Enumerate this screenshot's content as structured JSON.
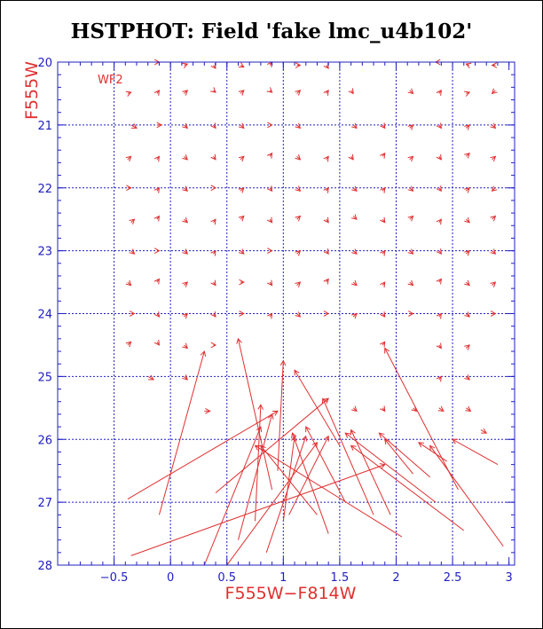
{
  "title": "HSTPHOT: Field 'fake lmc_u4b102'",
  "colors": {
    "axis": "#2020c0",
    "grid": "#2020c0",
    "vectors": "#e03030",
    "text": "#e03030"
  },
  "chart_data": {
    "type": "scatter",
    "subtype": "vector-field",
    "xlabel": "F555W−F814W",
    "ylabel": "F555W",
    "panel_label": "WF2",
    "xlim": [
      -1.0,
      3.05
    ],
    "ylim": [
      28.0,
      20.0
    ],
    "y_inverted": true,
    "xticks": [
      -0.5,
      0,
      0.5,
      1,
      1.5,
      2,
      2.5,
      3
    ],
    "xtick_labels": [
      "−0.5",
      "0",
      "0.5",
      "1",
      "1.5",
      "2",
      "2.5",
      "3"
    ],
    "yticks": [
      20,
      21,
      22,
      23,
      24,
      25,
      26,
      27,
      28
    ],
    "ytick_labels": [
      "20",
      "21",
      "22",
      "23",
      "24",
      "25",
      "26",
      "27",
      "28"
    ],
    "grid": true,
    "grid_x": [
      -0.5,
      0,
      0.5,
      1,
      1.5,
      2,
      2.5
    ],
    "grid_y": [
      21,
      22,
      23,
      24,
      25,
      26,
      27
    ],
    "vectors": [
      {
        "x0": -0.15,
        "y0": 20.0,
        "x1": -0.1,
        "y1": 20.0
      },
      {
        "x0": 0.12,
        "y0": 20.05,
        "x1": 0.15,
        "y1": 20.03
      },
      {
        "x0": 0.38,
        "y0": 20.05,
        "x1": 0.4,
        "y1": 20.1
      },
      {
        "x0": 0.62,
        "y0": 20.05,
        "x1": 0.65,
        "y1": 20.08
      },
      {
        "x0": 0.88,
        "y0": 20.05,
        "x1": 0.9,
        "y1": 20.0
      },
      {
        "x0": 1.12,
        "y0": 20.05,
        "x1": 1.15,
        "y1": 20.05
      },
      {
        "x0": 1.38,
        "y0": 20.05,
        "x1": 1.4,
        "y1": 20.1
      },
      {
        "x0": 2.38,
        "y0": 20.0,
        "x1": 2.35,
        "y1": 20.0
      },
      {
        "x0": 2.65,
        "y0": 20.05,
        "x1": 2.62,
        "y1": 20.03
      },
      {
        "x0": 2.88,
        "y0": 20.05,
        "x1": 2.85,
        "y1": 20.05
      },
      {
        "x0": -0.38,
        "y0": 20.5,
        "x1": -0.35,
        "y1": 20.48
      },
      {
        "x0": -0.12,
        "y0": 20.5,
        "x1": -0.1,
        "y1": 20.45
      },
      {
        "x0": 0.12,
        "y0": 20.5,
        "x1": 0.15,
        "y1": 20.45
      },
      {
        "x0": 0.38,
        "y0": 20.45,
        "x1": 0.4,
        "y1": 20.48
      },
      {
        "x0": 0.62,
        "y0": 20.5,
        "x1": 0.65,
        "y1": 20.45
      },
      {
        "x0": 0.88,
        "y0": 20.45,
        "x1": 0.9,
        "y1": 20.48
      },
      {
        "x0": 1.12,
        "y0": 20.5,
        "x1": 1.15,
        "y1": 20.45
      },
      {
        "x0": 1.38,
        "y0": 20.5,
        "x1": 1.4,
        "y1": 20.45
      },
      {
        "x0": 1.6,
        "y0": 20.45,
        "x1": 1.62,
        "y1": 20.5
      },
      {
        "x0": 2.12,
        "y0": 20.45,
        "x1": 2.15,
        "y1": 20.5
      },
      {
        "x0": 2.38,
        "y0": 20.5,
        "x1": 2.4,
        "y1": 20.45
      },
      {
        "x0": 2.62,
        "y0": 20.5,
        "x1": 2.65,
        "y1": 20.48
      },
      {
        "x0": 2.88,
        "y0": 20.45,
        "x1": 2.85,
        "y1": 20.5
      },
      {
        "x0": -0.35,
        "y0": 21.0,
        "x1": -0.3,
        "y1": 21.05
      },
      {
        "x0": -0.12,
        "y0": 21.0,
        "x1": -0.08,
        "y1": 21.0
      },
      {
        "x0": 0.12,
        "y0": 21.0,
        "x1": 0.15,
        "y1": 21.05
      },
      {
        "x0": 0.38,
        "y0": 21.0,
        "x1": 0.4,
        "y1": 21.05
      },
      {
        "x0": 0.62,
        "y0": 21.0,
        "x1": 0.65,
        "y1": 21.05
      },
      {
        "x0": 0.88,
        "y0": 21.0,
        "x1": 0.9,
        "y1": 21.0
      },
      {
        "x0": 1.12,
        "y0": 21.0,
        "x1": 1.15,
        "y1": 21.05
      },
      {
        "x0": 1.62,
        "y0": 21.0,
        "x1": 1.65,
        "y1": 21.05
      },
      {
        "x0": 1.88,
        "y0": 21.0,
        "x1": 1.9,
        "y1": 21.05
      },
      {
        "x0": 2.12,
        "y0": 21.05,
        "x1": 2.15,
        "y1": 21.0
      },
      {
        "x0": 2.38,
        "y0": 21.0,
        "x1": 2.4,
        "y1": 21.05
      },
      {
        "x0": 2.62,
        "y0": 21.05,
        "x1": 2.65,
        "y1": 21.0
      },
      {
        "x0": 2.85,
        "y0": 21.0,
        "x1": 2.88,
        "y1": 21.05
      },
      {
        "x0": -0.38,
        "y0": 21.55,
        "x1": -0.35,
        "y1": 21.5
      },
      {
        "x0": -0.12,
        "y0": 21.55,
        "x1": -0.1,
        "y1": 21.5
      },
      {
        "x0": 0.12,
        "y0": 21.5,
        "x1": 0.15,
        "y1": 21.55
      },
      {
        "x0": 0.38,
        "y0": 21.5,
        "x1": 0.4,
        "y1": 21.55
      },
      {
        "x0": 0.62,
        "y0": 21.55,
        "x1": 0.65,
        "y1": 21.5
      },
      {
        "x0": 0.88,
        "y0": 21.5,
        "x1": 0.9,
        "y1": 21.45
      },
      {
        "x0": 1.12,
        "y0": 21.5,
        "x1": 1.15,
        "y1": 21.55
      },
      {
        "x0": 1.38,
        "y0": 21.55,
        "x1": 1.4,
        "y1": 21.5
      },
      {
        "x0": 1.6,
        "y0": 21.5,
        "x1": 1.62,
        "y1": 21.55
      },
      {
        "x0": 1.88,
        "y0": 21.5,
        "x1": 1.9,
        "y1": 21.45
      },
      {
        "x0": 2.12,
        "y0": 21.55,
        "x1": 2.15,
        "y1": 21.5
      },
      {
        "x0": 2.38,
        "y0": 21.5,
        "x1": 2.4,
        "y1": 21.55
      },
      {
        "x0": 2.62,
        "y0": 21.5,
        "x1": 2.65,
        "y1": 21.45
      },
      {
        "x0": 2.85,
        "y0": 21.55,
        "x1": 2.88,
        "y1": 21.5
      },
      {
        "x0": -0.38,
        "y0": 22.0,
        "x1": -0.35,
        "y1": 22.0
      },
      {
        "x0": -0.12,
        "y0": 22.05,
        "x1": -0.1,
        "y1": 22.0
      },
      {
        "x0": 0.12,
        "y0": 22.0,
        "x1": 0.15,
        "y1": 22.05
      },
      {
        "x0": 0.38,
        "y0": 22.0,
        "x1": 0.4,
        "y1": 22.0
      },
      {
        "x0": 0.62,
        "y0": 22.05,
        "x1": 0.65,
        "y1": 22.0
      },
      {
        "x0": 0.88,
        "y0": 22.0,
        "x1": 0.9,
        "y1": 22.05
      },
      {
        "x0": 1.12,
        "y0": 22.0,
        "x1": 1.15,
        "y1": 22.05
      },
      {
        "x0": 1.38,
        "y0": 22.05,
        "x1": 1.4,
        "y1": 22.0
      },
      {
        "x0": 1.62,
        "y0": 22.0,
        "x1": 1.65,
        "y1": 22.05
      },
      {
        "x0": 1.88,
        "y0": 22.05,
        "x1": 1.9,
        "y1": 22.0
      },
      {
        "x0": 2.12,
        "y0": 22.0,
        "x1": 2.15,
        "y1": 22.05
      },
      {
        "x0": 2.38,
        "y0": 22.0,
        "x1": 2.4,
        "y1": 22.05
      },
      {
        "x0": 2.62,
        "y0": 22.05,
        "x1": 2.65,
        "y1": 22.0
      },
      {
        "x0": 2.88,
        "y0": 22.0,
        "x1": 2.85,
        "y1": 22.05
      },
      {
        "x0": -0.35,
        "y0": 22.55,
        "x1": -0.32,
        "y1": 22.5
      },
      {
        "x0": -0.12,
        "y0": 22.5,
        "x1": -0.1,
        "y1": 22.45
      },
      {
        "x0": 0.12,
        "y0": 22.5,
        "x1": 0.15,
        "y1": 22.55
      },
      {
        "x0": 0.38,
        "y0": 22.55,
        "x1": 0.4,
        "y1": 22.5
      },
      {
        "x0": 0.62,
        "y0": 22.5,
        "x1": 0.65,
        "y1": 22.45
      },
      {
        "x0": 0.88,
        "y0": 22.5,
        "x1": 0.9,
        "y1": 22.55
      },
      {
        "x0": 1.12,
        "y0": 22.5,
        "x1": 1.15,
        "y1": 22.45
      },
      {
        "x0": 1.38,
        "y0": 22.5,
        "x1": 1.4,
        "y1": 22.55
      },
      {
        "x0": 1.62,
        "y0": 22.45,
        "x1": 1.65,
        "y1": 22.5
      },
      {
        "x0": 1.88,
        "y0": 22.5,
        "x1": 1.9,
        "y1": 22.55
      },
      {
        "x0": 2.12,
        "y0": 22.5,
        "x1": 2.15,
        "y1": 22.45
      },
      {
        "x0": 2.38,
        "y0": 22.55,
        "x1": 2.4,
        "y1": 22.5
      },
      {
        "x0": 2.62,
        "y0": 22.5,
        "x1": 2.65,
        "y1": 22.55
      },
      {
        "x0": 2.85,
        "y0": 22.5,
        "x1": 2.88,
        "y1": 22.45
      },
      {
        "x0": -0.35,
        "y0": 23.0,
        "x1": -0.32,
        "y1": 23.05
      },
      {
        "x0": -0.12,
        "y0": 23.0,
        "x1": -0.1,
        "y1": 23.0
      },
      {
        "x0": 0.12,
        "y0": 23.0,
        "x1": 0.15,
        "y1": 23.05
      },
      {
        "x0": 0.38,
        "y0": 23.05,
        "x1": 0.4,
        "y1": 23.0
      },
      {
        "x0": 0.62,
        "y0": 23.0,
        "x1": 0.65,
        "y1": 23.05
      },
      {
        "x0": 0.88,
        "y0": 23.0,
        "x1": 0.9,
        "y1": 23.0
      },
      {
        "x0": 1.12,
        "y0": 23.05,
        "x1": 1.15,
        "y1": 23.0
      },
      {
        "x0": 1.38,
        "y0": 23.0,
        "x1": 1.4,
        "y1": 23.05
      },
      {
        "x0": 1.62,
        "y0": 23.0,
        "x1": 1.65,
        "y1": 23.05
      },
      {
        "x0": 1.88,
        "y0": 23.05,
        "x1": 1.9,
        "y1": 23.0
      },
      {
        "x0": 2.12,
        "y0": 23.0,
        "x1": 2.15,
        "y1": 23.05
      },
      {
        "x0": 2.38,
        "y0": 23.0,
        "x1": 2.4,
        "y1": 23.05
      },
      {
        "x0": 2.62,
        "y0": 23.05,
        "x1": 2.65,
        "y1": 23.0
      },
      {
        "x0": 2.85,
        "y0": 23.0,
        "x1": 2.88,
        "y1": 23.05
      },
      {
        "x0": -0.38,
        "y0": 23.5,
        "x1": -0.35,
        "y1": 23.55
      },
      {
        "x0": -0.12,
        "y0": 23.5,
        "x1": -0.1,
        "y1": 23.45
      },
      {
        "x0": 0.12,
        "y0": 23.55,
        "x1": 0.15,
        "y1": 23.5
      },
      {
        "x0": 0.38,
        "y0": 23.5,
        "x1": 0.4,
        "y1": 23.55
      },
      {
        "x0": 0.62,
        "y0": 23.5,
        "x1": 0.65,
        "y1": 23.5
      },
      {
        "x0": 0.88,
        "y0": 23.5,
        "x1": 0.9,
        "y1": 23.55
      },
      {
        "x0": 1.12,
        "y0": 23.55,
        "x1": 1.15,
        "y1": 23.5
      },
      {
        "x0": 1.38,
        "y0": 23.5,
        "x1": 1.4,
        "y1": 23.45
      },
      {
        "x0": 1.62,
        "y0": 23.5,
        "x1": 1.65,
        "y1": 23.55
      },
      {
        "x0": 1.88,
        "y0": 23.55,
        "x1": 1.9,
        "y1": 23.5
      },
      {
        "x0": 2.12,
        "y0": 23.5,
        "x1": 2.15,
        "y1": 23.55
      },
      {
        "x0": 2.38,
        "y0": 23.5,
        "x1": 2.4,
        "y1": 23.45
      },
      {
        "x0": 2.62,
        "y0": 23.5,
        "x1": 2.65,
        "y1": 23.55
      },
      {
        "x0": 2.85,
        "y0": 23.55,
        "x1": 2.88,
        "y1": 23.5
      },
      {
        "x0": -0.35,
        "y0": 24.0,
        "x1": -0.32,
        "y1": 24.0
      },
      {
        "x0": -0.12,
        "y0": 24.0,
        "x1": -0.1,
        "y1": 24.05
      },
      {
        "x0": 0.12,
        "y0": 24.05,
        "x1": 0.15,
        "y1": 24.0
      },
      {
        "x0": 0.38,
        "y0": 24.0,
        "x1": 0.4,
        "y1": 24.05
      },
      {
        "x0": 0.62,
        "y0": 24.0,
        "x1": 0.65,
        "y1": 24.0
      },
      {
        "x0": 0.88,
        "y0": 24.05,
        "x1": 0.9,
        "y1": 24.0
      },
      {
        "x0": 1.12,
        "y0": 24.0,
        "x1": 1.15,
        "y1": 24.05
      },
      {
        "x0": 1.38,
        "y0": 24.0,
        "x1": 1.4,
        "y1": 24.0
      },
      {
        "x0": 1.62,
        "y0": 24.05,
        "x1": 1.65,
        "y1": 24.0
      },
      {
        "x0": 1.88,
        "y0": 24.0,
        "x1": 1.9,
        "y1": 24.05
      },
      {
        "x0": 2.12,
        "y0": 24.0,
        "x1": 2.15,
        "y1": 24.0
      },
      {
        "x0": 2.38,
        "y0": 24.05,
        "x1": 2.4,
        "y1": 24.0
      },
      {
        "x0": 2.62,
        "y0": 24.0,
        "x1": 2.65,
        "y1": 24.05
      },
      {
        "x0": 2.85,
        "y0": 24.0,
        "x1": 2.88,
        "y1": 24.0
      },
      {
        "x0": -0.38,
        "y0": 24.5,
        "x1": -0.35,
        "y1": 24.45
      },
      {
        "x0": -0.12,
        "y0": 24.45,
        "x1": -0.1,
        "y1": 24.5
      },
      {
        "x0": 0.12,
        "y0": 24.5,
        "x1": 0.15,
        "y1": 24.55
      },
      {
        "x0": 0.38,
        "y0": 24.5,
        "x1": 0.4,
        "y1": 24.5
      },
      {
        "x0": 1.88,
        "y0": 24.5,
        "x1": 1.9,
        "y1": 24.45
      },
      {
        "x0": 2.38,
        "y0": 24.5,
        "x1": 2.4,
        "y1": 24.55
      },
      {
        "x0": 2.62,
        "y0": 24.55,
        "x1": 2.65,
        "y1": 24.5
      },
      {
        "x0": -0.2,
        "y0": 25.0,
        "x1": -0.15,
        "y1": 25.05
      },
      {
        "x0": 0.12,
        "y0": 25.0,
        "x1": 0.15,
        "y1": 25.05
      },
      {
        "x0": 2.38,
        "y0": 25.05,
        "x1": 2.4,
        "y1": 25.0
      },
      {
        "x0": 2.62,
        "y0": 25.0,
        "x1": 2.65,
        "y1": 25.05
      },
      {
        "x0": 0.3,
        "y0": 25.55,
        "x1": 0.35,
        "y1": 25.55
      },
      {
        "x0": 1.62,
        "y0": 25.5,
        "x1": 1.65,
        "y1": 25.55
      },
      {
        "x0": 1.88,
        "y0": 25.5,
        "x1": 1.9,
        "y1": 25.55
      },
      {
        "x0": 2.15,
        "y0": 25.5,
        "x1": 2.18,
        "y1": 25.55
      },
      {
        "x0": 2.38,
        "y0": 25.5,
        "x1": 2.42,
        "y1": 25.55
      },
      {
        "x0": 2.62,
        "y0": 25.5,
        "x1": 2.66,
        "y1": 25.55
      },
      {
        "x0": 2.75,
        "y0": 25.85,
        "x1": 2.8,
        "y1": 25.9
      },
      {
        "x0": -0.1,
        "y0": 27.2,
        "x1": 0.3,
        "y1": 24.6
      },
      {
        "x0": -0.38,
        "y0": 26.95,
        "x1": 0.95,
        "y1": 25.55
      },
      {
        "x0": -0.35,
        "y0": 27.85,
        "x1": 1.9,
        "y1": 26.4
      },
      {
        "x0": 0.3,
        "y0": 28.0,
        "x1": 0.8,
        "y1": 25.8
      },
      {
        "x0": 0.4,
        "y0": 26.85,
        "x1": 1.4,
        "y1": 25.35
      },
      {
        "x0": 0.5,
        "y0": 28.0,
        "x1": 1.3,
        "y1": 26.05
      },
      {
        "x0": 0.6,
        "y0": 27.6,
        "x1": 0.9,
        "y1": 25.6
      },
      {
        "x0": 0.75,
        "y0": 27.3,
        "x1": 0.8,
        "y1": 25.45
      },
      {
        "x0": 0.9,
        "y0": 26.8,
        "x1": 0.6,
        "y1": 24.4
      },
      {
        "x0": 0.95,
        "y0": 26.5,
        "x1": 1.0,
        "y1": 24.75
      },
      {
        "x0": 0.85,
        "y0": 27.8,
        "x1": 1.2,
        "y1": 25.95
      },
      {
        "x0": 1.3,
        "y0": 27.2,
        "x1": 0.8,
        "y1": 26.1
      },
      {
        "x0": 1.0,
        "y0": 27.3,
        "x1": 1.1,
        "y1": 25.95
      },
      {
        "x0": 1.4,
        "y0": 27.5,
        "x1": 1.08,
        "y1": 25.9
      },
      {
        "x0": 1.05,
        "y0": 27.2,
        "x1": 1.4,
        "y1": 25.95
      },
      {
        "x0": 1.5,
        "y0": 26.1,
        "x1": 1.1,
        "y1": 24.9
      },
      {
        "x0": 1.55,
        "y0": 27.0,
        "x1": 1.2,
        "y1": 25.8
      },
      {
        "x0": 1.8,
        "y0": 27.2,
        "x1": 1.35,
        "y1": 25.35
      },
      {
        "x0": 1.95,
        "y0": 27.2,
        "x1": 1.6,
        "y1": 25.85
      },
      {
        "x0": 2.3,
        "y0": 26.6,
        "x1": 1.85,
        "y1": 25.9
      },
      {
        "x0": 2.35,
        "y0": 27.0,
        "x1": 1.55,
        "y1": 25.9
      },
      {
        "x0": 2.6,
        "y0": 27.45,
        "x1": 1.6,
        "y1": 26.1
      },
      {
        "x0": 2.05,
        "y0": 27.55,
        "x1": 0.75,
        "y1": 26.1
      },
      {
        "x0": 2.15,
        "y0": 26.55,
        "x1": 1.9,
        "y1": 26.0
      },
      {
        "x0": 2.45,
        "y0": 26.35,
        "x1": 2.2,
        "y1": 26.05
      },
      {
        "x0": 2.55,
        "y0": 26.8,
        "x1": 1.9,
        "y1": 24.55
      },
      {
        "x0": 2.9,
        "y0": 26.4,
        "x1": 2.5,
        "y1": 26.0
      },
      {
        "x0": 2.95,
        "y0": 27.7,
        "x1": 2.3,
        "y1": 26.1
      }
    ]
  }
}
